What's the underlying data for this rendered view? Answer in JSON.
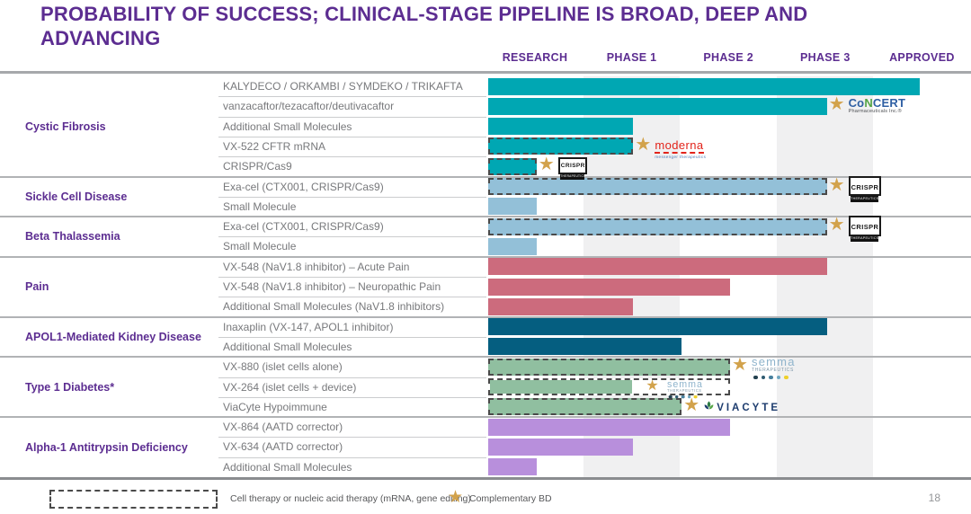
{
  "slide": {
    "title_line1": "PROBABILITY OF SUCCESS; CLINICAL-STAGE PIPELINE IS BROAD, DEEP AND",
    "title_line2": "ADVANCING",
    "page_number": "18"
  },
  "legend": {
    "dashed_box_label": "Cell therapy or nucleic acid therapy (mRNA, gene editing)",
    "star_label": "Complementary BD"
  },
  "partners": {
    "concert": {
      "name": "CoNCERT",
      "sub": "Pharmaceuticals Inc.®"
    },
    "moderna": {
      "name": "moderna",
      "sub": "messenger therapeutics"
    },
    "crispr": {
      "name": "CRISPR",
      "sub": "THERAPEUTICS"
    },
    "semma": {
      "name": "semma",
      "sub": "THERAPEUTICS"
    },
    "viacyte": {
      "name": "ViaCyte"
    }
  },
  "colors": {
    "accent_purple": "#5c2d91",
    "teal": "#00a7b3",
    "light_blue": "#93c0d8",
    "rose": "#cc6b7d",
    "dark_teal": "#055e80",
    "green": "#90bfa0",
    "lavender": "#b88fdc",
    "star_gold": "#d2a24b",
    "column_stripe": "#f0f0f1",
    "label_gray": "#77787b",
    "semma_dots": [
      "#23404f",
      "#2d5a70",
      "#47809e",
      "#6fa7c0",
      "#eed02b"
    ]
  },
  "chart_data": {
    "type": "bar",
    "orientation": "horizontal",
    "stage_scale_note": "stage units: 1 = end of Research, 2 = end of Phase 1, 3 = end of Phase 2, 4 = end of Phase 3, 5 = end of Approved; .5 = mid-column",
    "columns": [
      "RESEARCH",
      "PHASE 1",
      "PHASE 2",
      "PHASE 3",
      "APPROVED"
    ],
    "sections": [
      {
        "disease": "Cystic Fibrosis",
        "rows": [
          {
            "label": "KALYDECO / ORKAMBI / SYMDEKO / TRIKAFTA",
            "stage": 4.46,
            "color": "teal",
            "dashed": false,
            "star": false,
            "partner": null
          },
          {
            "label": "vanzacaftor/tezacaftor/deutivacaftor",
            "stage": 3.5,
            "color": "teal",
            "dashed": false,
            "star": true,
            "partner": "concert"
          },
          {
            "label": "Additional Small Molecules",
            "stage": 1.5,
            "color": "teal",
            "dashed": false,
            "star": false,
            "partner": null
          },
          {
            "label": "VX-522 CFTR mRNA",
            "stage": 1.5,
            "color": "teal",
            "dashed": true,
            "star": true,
            "partner": "moderna"
          },
          {
            "label": "CRISPR/Cas9",
            "stage": 0.5,
            "color": "teal",
            "dashed": true,
            "star": true,
            "partner": "crispr",
            "partner_size": "small"
          }
        ]
      },
      {
        "disease": "Sickle Cell Disease",
        "rows": [
          {
            "label": "Exa-cel (CTX001, CRISPR/Cas9)",
            "stage": 3.5,
            "color": "light_blue",
            "dashed": true,
            "star": true,
            "partner": "crispr",
            "partner_size": "large"
          },
          {
            "label": "Small Molecule",
            "stage": 0.5,
            "color": "light_blue",
            "dashed": false,
            "star": false,
            "partner": null
          }
        ]
      },
      {
        "disease": "Beta Thalassemia",
        "rows": [
          {
            "label": "Exa-cel (CTX001, CRISPR/Cas9)",
            "stage": 3.5,
            "color": "light_blue",
            "dashed": true,
            "star": true,
            "partner": "crispr",
            "partner_size": "large"
          },
          {
            "label": "Small Molecule",
            "stage": 0.5,
            "color": "light_blue",
            "dashed": false,
            "star": false,
            "partner": null
          }
        ]
      },
      {
        "disease": "Pain",
        "rows": [
          {
            "label": "VX-548 (NaV1.8 inhibitor) – Acute Pain",
            "stage": 3.5,
            "color": "rose",
            "dashed": false,
            "star": false,
            "partner": null
          },
          {
            "label": "VX-548 (NaV1.8 inhibitor) – Neuropathic Pain",
            "stage": 2.5,
            "color": "rose",
            "dashed": false,
            "star": false,
            "partner": null
          },
          {
            "label": "Additional Small Molecules (NaV1.8 inhibitors)",
            "stage": 1.5,
            "color": "rose",
            "dashed": false,
            "star": false,
            "partner": null
          }
        ]
      },
      {
        "disease": "APOL1-Mediated Kidney Disease",
        "rows": [
          {
            "label": "Inaxaplin (VX-147, APOL1 inhibitor)",
            "stage": 3.5,
            "color": "dark_teal",
            "dashed": false,
            "star": false,
            "partner": null
          },
          {
            "label": "Additional Small Molecules",
            "stage": 2.0,
            "color": "dark_teal",
            "dashed": false,
            "star": false,
            "partner": null
          }
        ]
      },
      {
        "disease": "Type 1 Diabetes*",
        "rows": [
          {
            "label": "VX-880 (islet cells alone)",
            "stage": 2.5,
            "color": "green",
            "dashed": true,
            "star": true,
            "partner": "semma"
          },
          {
            "label": "VX-264 (islet cells + device)",
            "stage": 1.5,
            "dashed_extent": 2.5,
            "color": "green",
            "dashed": true,
            "star": true,
            "partner": "semma",
            "annotation_inside": true
          },
          {
            "label": "ViaCyte Hypoimmune",
            "stage": 2.0,
            "color": "green",
            "dashed": true,
            "star": true,
            "partner": "viacyte"
          }
        ]
      },
      {
        "disease": "Alpha-1 Antitrypsin Deficiency",
        "rows": [
          {
            "label": "VX-864 (AATD corrector)",
            "stage": 2.5,
            "color": "lavender",
            "dashed": false,
            "star": false,
            "partner": null
          },
          {
            "label": "VX-634 (AATD corrector)",
            "stage": 1.5,
            "color": "lavender",
            "dashed": false,
            "star": false,
            "partner": null
          },
          {
            "label": "Additional Small Molecules",
            "stage": 0.5,
            "color": "lavender",
            "dashed": false,
            "star": false,
            "partner": null
          }
        ]
      }
    ]
  }
}
